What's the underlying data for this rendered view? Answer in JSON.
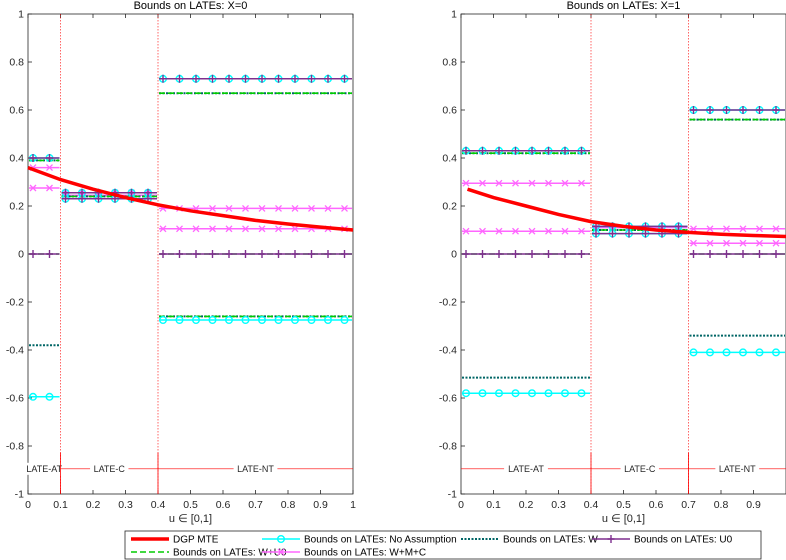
{
  "legend": {
    "entries": [
      {
        "key": "dgp",
        "label": "DGP MTE",
        "color": "#ff0000",
        "style": "solid-thick",
        "marker": "none"
      },
      {
        "key": "na",
        "label": "Bounds on LATEs: No Assumption",
        "color": "#00ffff",
        "style": "solid",
        "marker": "circle"
      },
      {
        "key": "w",
        "label": "Bounds on LATEs: W",
        "color": "#006666",
        "style": "dotted",
        "marker": "none"
      },
      {
        "key": "u0",
        "label": "Bounds on LATEs: U0",
        "color": "#7e2f8e",
        "style": "solid",
        "marker": "plus"
      },
      {
        "key": "wu0",
        "label": "Bounds on LATEs: W+U0",
        "color": "#00cc00",
        "style": "dashed",
        "marker": "none"
      },
      {
        "key": "wmc",
        "label": "Bounds on LATEs: W+M+C",
        "color": "#ff66ff",
        "style": "solid",
        "marker": "x"
      }
    ]
  },
  "chart_data": [
    {
      "type": "line",
      "title": "Bounds on LATEs: X=0",
      "xlabel": "u ∈ [0,1]",
      "ylabel": "",
      "xlim": [
        0,
        1
      ],
      "ylim": [
        -1,
        1
      ],
      "xticks": [
        "0",
        "0.1",
        "0.2",
        "0.3",
        "0.4",
        "0.5",
        "0.6",
        "0.7",
        "0.8",
        "0.9",
        "1"
      ],
      "xtick_values": [
        0,
        0.1,
        0.2,
        0.3,
        0.4,
        0.5,
        0.6,
        0.7,
        0.8,
        0.9,
        1
      ],
      "yticks": [
        "-1",
        "-0.8",
        "-0.6",
        "-0.4",
        "-0.2",
        "0",
        "0.2",
        "0.4",
        "0.6",
        "0.8",
        "1"
      ],
      "ytick_values": [
        -1,
        -0.8,
        -0.6,
        -0.4,
        -0.2,
        0,
        0.2,
        0.4,
        0.6,
        0.8,
        1
      ],
      "grid": false,
      "boundaries": [
        0.1,
        0.4
      ],
      "dgp": {
        "x": [
          0,
          0.1,
          0.2,
          0.3,
          0.4,
          0.5,
          0.6,
          0.7,
          0.8,
          0.9,
          1
        ],
        "y": [
          0.36,
          0.31,
          0.27,
          0.235,
          0.205,
          0.18,
          0.16,
          0.14,
          0.125,
          0.112,
          0.1
        ]
      },
      "regions": [
        {
          "label": "LATE-AT",
          "x": [
            0,
            0.1
          ],
          "lines": [
            {
              "key": "na",
              "y": 0.4
            },
            {
              "key": "u0",
              "y": 0.4
            },
            {
              "key": "w",
              "y": 0.39
            },
            {
              "key": "wu0",
              "y": 0.39
            },
            {
              "key": "wmc",
              "y": 0.36
            },
            {
              "key": "wmc",
              "y": 0.275
            },
            {
              "key": "u0",
              "y": 0
            },
            {
              "key": "wu0",
              "y": 0
            },
            {
              "key": "w",
              "y": -0.38
            },
            {
              "key": "na",
              "y": -0.595
            }
          ]
        },
        {
          "label": "LATE-C",
          "x": [
            0.1,
            0.4
          ],
          "lines": [
            {
              "key": "na",
              "y": 0.255
            },
            {
              "key": "u0",
              "y": 0.255
            },
            {
              "key": "wmc",
              "y": 0.255
            },
            {
              "key": "w",
              "y": 0.24
            },
            {
              "key": "wu0",
              "y": 0.24
            },
            {
              "key": "wmc",
              "y": 0.245
            },
            {
              "key": "na",
              "y": 0.23
            },
            {
              "key": "u0",
              "y": 0.23
            }
          ]
        },
        {
          "label": "LATE-NT",
          "x": [
            0.4,
            1
          ],
          "lines": [
            {
              "key": "na",
              "y": 0.73
            },
            {
              "key": "u0",
              "y": 0.73
            },
            {
              "key": "w",
              "y": 0.67
            },
            {
              "key": "wu0",
              "y": 0.67
            },
            {
              "key": "wmc",
              "y": 0.19
            },
            {
              "key": "wmc",
              "y": 0.105
            },
            {
              "key": "u0",
              "y": 0
            },
            {
              "key": "wu0",
              "y": 0
            },
            {
              "key": "w",
              "y": -0.26
            },
            {
              "key": "wu0",
              "y": -0.26
            },
            {
              "key": "na",
              "y": -0.275
            }
          ]
        }
      ]
    },
    {
      "type": "line",
      "title": "Bounds on LATEs: X=1",
      "xlabel": "u ∈ [0,1]",
      "ylabel": "",
      "xlim": [
        0,
        1
      ],
      "ylim": [
        -1,
        1
      ],
      "xticks": [
        "0",
        "0.1",
        "0.2",
        "0.3",
        "0.4",
        "0.5",
        "0.6",
        "0.7",
        "0.8",
        "0.9"
      ],
      "xtick_values": [
        0,
        0.1,
        0.2,
        0.3,
        0.4,
        0.5,
        0.6,
        0.7,
        0.8,
        0.9
      ],
      "yticks": [
        "-1",
        "-0.8",
        "-0.6",
        "-0.4",
        "-0.2",
        "0",
        "0.2",
        "0.4",
        "0.6",
        "0.8",
        "1"
      ],
      "ytick_values": [
        -1,
        -0.8,
        -0.6,
        -0.4,
        -0.2,
        0,
        0.2,
        0.4,
        0.6,
        0.8,
        1
      ],
      "grid": false,
      "boundaries": [
        0.4,
        0.7
      ],
      "dgp": {
        "x": [
          0.02,
          0.1,
          0.2,
          0.3,
          0.4,
          0.5,
          0.6,
          0.7,
          0.8,
          0.9,
          1
        ],
        "y": [
          0.27,
          0.235,
          0.2,
          0.165,
          0.135,
          0.115,
          0.1,
          0.09,
          0.082,
          0.077,
          0.073
        ]
      },
      "regions": [
        {
          "label": "LATE-AT",
          "x": [
            0,
            0.4
          ],
          "lines": [
            {
              "key": "na",
              "y": 0.43
            },
            {
              "key": "u0",
              "y": 0.43
            },
            {
              "key": "w",
              "y": 0.42
            },
            {
              "key": "wu0",
              "y": 0.42
            },
            {
              "key": "wmc",
              "y": 0.295
            },
            {
              "key": "wmc",
              "y": 0.095
            },
            {
              "key": "u0",
              "y": 0
            },
            {
              "key": "wu0",
              "y": 0
            },
            {
              "key": "w",
              "y": -0.515
            },
            {
              "key": "na",
              "y": -0.58
            }
          ]
        },
        {
          "label": "LATE-C",
          "x": [
            0.4,
            0.7
          ],
          "lines": [
            {
              "key": "na",
              "y": 0.115
            },
            {
              "key": "u0",
              "y": 0.115
            },
            {
              "key": "wmc",
              "y": 0.11
            },
            {
              "key": "w",
              "y": 0.1
            },
            {
              "key": "wu0",
              "y": 0.1
            },
            {
              "key": "na",
              "y": 0.085
            },
            {
              "key": "u0",
              "y": 0.085
            }
          ]
        },
        {
          "label": "LATE-NT",
          "x": [
            0.7,
            1
          ],
          "lines": [
            {
              "key": "na",
              "y": 0.6
            },
            {
              "key": "u0",
              "y": 0.6
            },
            {
              "key": "w",
              "y": 0.56
            },
            {
              "key": "wu0",
              "y": 0.56
            },
            {
              "key": "wmc",
              "y": 0.105
            },
            {
              "key": "wmc",
              "y": 0.045
            },
            {
              "key": "u0",
              "y": 0
            },
            {
              "key": "wu0",
              "y": 0
            },
            {
              "key": "w",
              "y": -0.34
            },
            {
              "key": "na",
              "y": -0.41
            }
          ]
        }
      ]
    }
  ]
}
